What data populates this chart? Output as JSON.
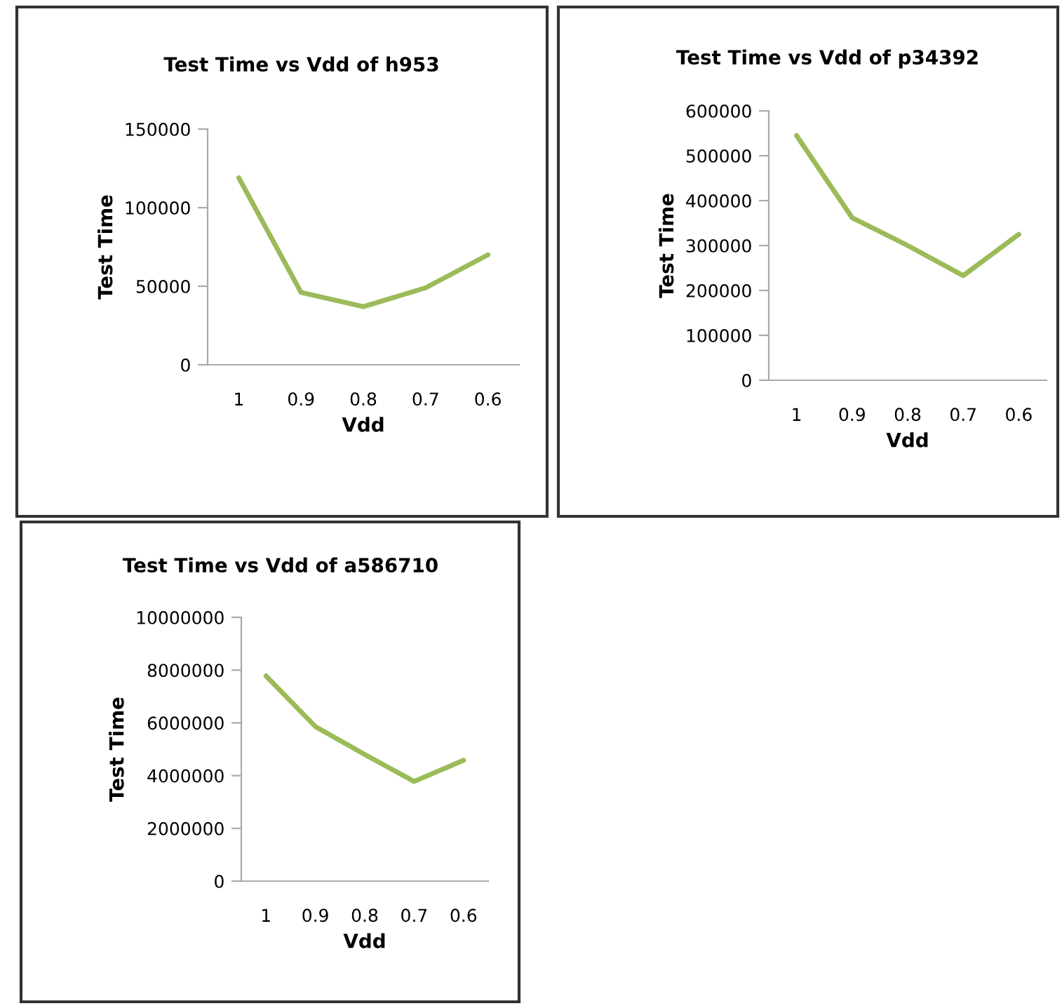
{
  "chart_data": [
    {
      "type": "line",
      "title": "Test Time vs Vdd of h953",
      "xlabel": "Vdd",
      "ylabel": "Test Time",
      "categories": [
        "1",
        "0.9",
        "0.8",
        "0.7",
        "0.6"
      ],
      "series": [
        {
          "color": "#9bbb59",
          "values": [
            119000,
            46000,
            37000,
            49000,
            70000
          ]
        }
      ],
      "ylim": [
        0,
        150000
      ],
      "yticks": [
        0,
        50000,
        100000,
        150000
      ],
      "grid": false,
      "legend": false
    },
    {
      "type": "line",
      "title": "Test Time vs Vdd of p34392",
      "xlabel": "Vdd",
      "ylabel": "Test Time",
      "categories": [
        "1",
        "0.9",
        "0.8",
        "0.7",
        "0.6"
      ],
      "series": [
        {
          "color": "#9bbb59",
          "values": [
            545000,
            362000,
            300000,
            233000,
            325000
          ]
        }
      ],
      "ylim": [
        0,
        600000
      ],
      "yticks": [
        0,
        100000,
        200000,
        300000,
        400000,
        500000,
        600000
      ],
      "grid": false,
      "legend": false
    },
    {
      "type": "line",
      "title": "Test Time vs Vdd of a586710",
      "xlabel": "Vdd",
      "ylabel": "Test Time",
      "categories": [
        "1",
        "0.9",
        "0.8",
        "0.7",
        "0.6"
      ],
      "series": [
        {
          "color": "#9bbb59",
          "values": [
            7780000,
            5860000,
            4800000,
            3780000,
            4580000
          ]
        }
      ],
      "ylim": [
        0,
        10000000
      ],
      "yticks": [
        0,
        2000000,
        4000000,
        6000000,
        8000000,
        10000000
      ],
      "grid": false,
      "legend": false
    }
  ]
}
